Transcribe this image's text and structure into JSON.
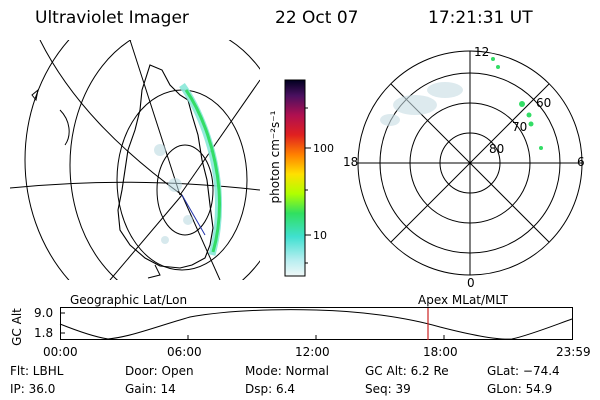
{
  "header": {
    "title": "Ultraviolet Imager",
    "date": "22 Oct 07",
    "time": "17:21:31 UT"
  },
  "colorbar": {
    "unit_label": "photon cm⁻²s⁻¹",
    "ticks": [
      "100",
      "10"
    ]
  },
  "polar_plot": {
    "lat_labels": [
      "60",
      "70",
      "80"
    ],
    "mlt_labels": {
      "top": "12",
      "left": "18",
      "right": "6",
      "bottom": "0"
    }
  },
  "altitude_panel": {
    "left_label": "Geographic Lat/Lon",
    "right_label": "Apex MLat/MLT",
    "ylabel": "GC Alt",
    "yticks": [
      "9.0",
      "1.8"
    ],
    "xticks": [
      "00:00",
      "06:00",
      "12:00",
      "18:00",
      "23:59"
    ],
    "current_time_marker_color": "#cc2222"
  },
  "status": {
    "row1": {
      "filter": "Flt: LBHL",
      "door": "Door: Open",
      "mode": "Mode: Normal",
      "gc_alt": "GC Alt: 6.2 Re",
      "glat": "GLat:  −74.4"
    },
    "row2": {
      "ip": "IP: 36.0",
      "gain": "Gain: 14",
      "dsp": "Dsp:     6.4",
      "seq": "Seq: 39",
      "glon": "GLon:   54.9"
    }
  },
  "colors": {
    "aurora_green": "#33dd66",
    "aurora_cyan": "#88e8d8",
    "grid": "#000000"
  }
}
